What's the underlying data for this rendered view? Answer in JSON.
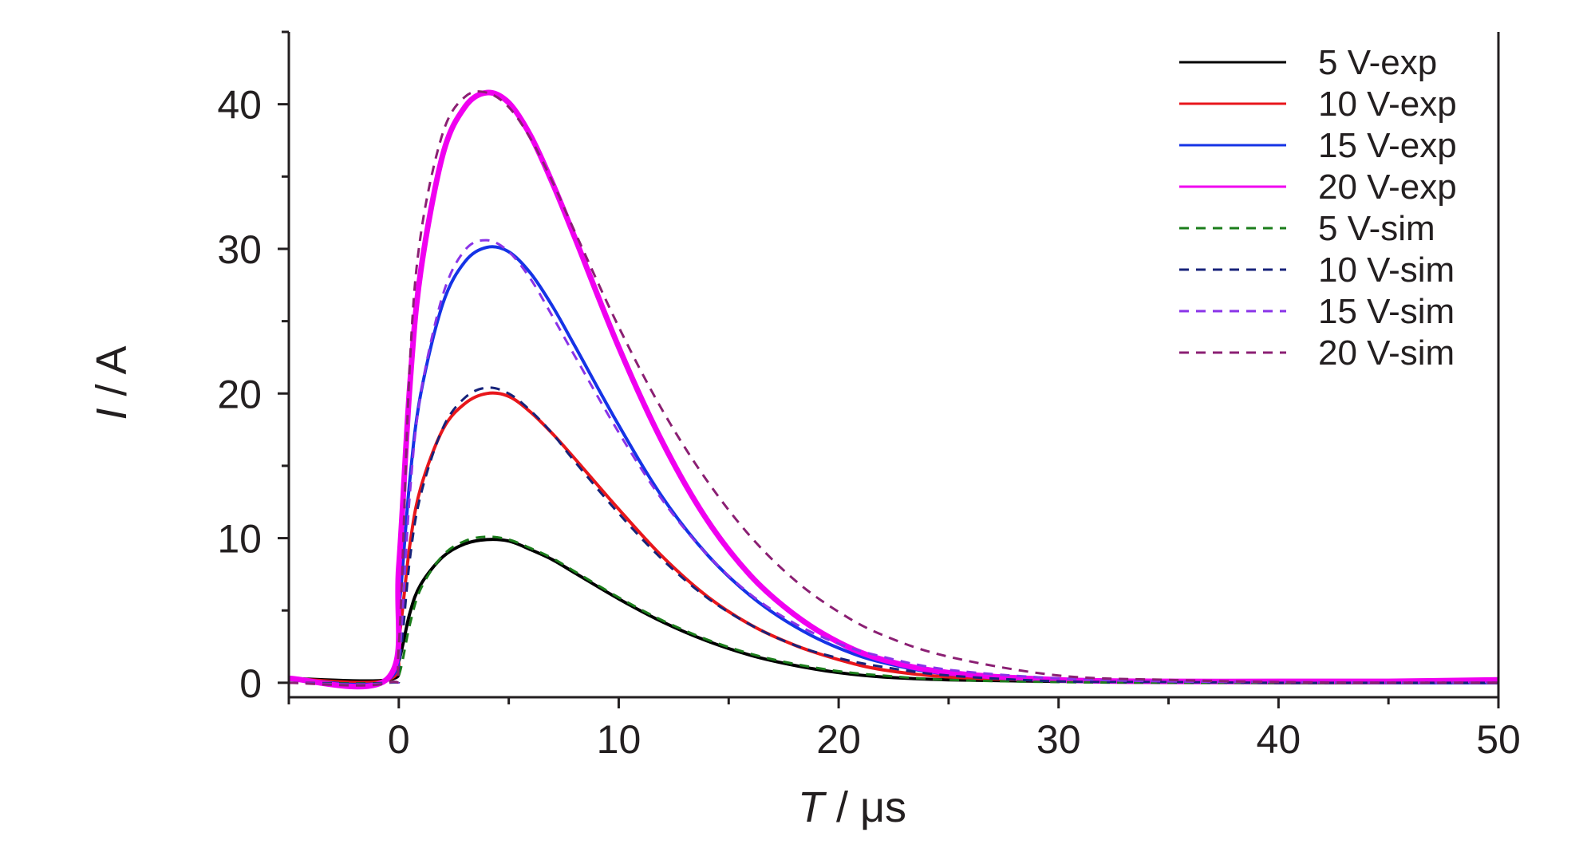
{
  "chart_data": {
    "type": "line",
    "xlabel": {
      "italic": "T",
      "rest": " / μs"
    },
    "ylabel": {
      "italic": "I",
      "rest": " / A"
    },
    "xlim": [
      -5,
      50
    ],
    "ylim": [
      -1,
      45
    ],
    "xticks": [
      0,
      10,
      20,
      30,
      40,
      50
    ],
    "yticks": [
      0,
      10,
      20,
      30,
      40
    ],
    "grid": false,
    "legend_position": "top-right",
    "series": [
      {
        "name": "5 V-exp",
        "amplitude": 10,
        "color": "#000000",
        "dash": "solid",
        "width": 4,
        "x": [
          -5,
          -0.5,
          0,
          0.5,
          1,
          2,
          3,
          4,
          5,
          6,
          7,
          8,
          10,
          12,
          14,
          16,
          18,
          20,
          22,
          25,
          30,
          35,
          40,
          45,
          50
        ],
        "y": [
          0.3,
          0.2,
          1.5,
          4.8,
          6.8,
          8.7,
          9.6,
          9.9,
          9.8,
          9.2,
          8.5,
          7.6,
          5.8,
          4.2,
          2.9,
          1.9,
          1.2,
          0.7,
          0.4,
          0.2,
          0.1,
          0.05,
          0,
          0,
          0
        ]
      },
      {
        "name": "10 V-exp",
        "amplitude": 20,
        "color": "#e8161b",
        "dash": "solid",
        "width": 4,
        "x": [
          -5,
          -0.5,
          0,
          0.5,
          1,
          2,
          3,
          4,
          5,
          6,
          7,
          8,
          10,
          12,
          14,
          16,
          18,
          20,
          22,
          25,
          30,
          35,
          40,
          45,
          50
        ],
        "y": [
          0.3,
          0.2,
          3,
          9.5,
          13.5,
          17.5,
          19.3,
          20,
          19.8,
          18.7,
          17.2,
          15.5,
          12,
          8.7,
          6,
          4,
          2.6,
          1.6,
          0.9,
          0.4,
          0.15,
          0.1,
          0.05,
          0,
          0
        ]
      },
      {
        "name": "15 V-exp",
        "amplitude": 30,
        "color": "#1533e6",
        "dash": "solid",
        "width": 4,
        "x": [
          -5,
          -0.5,
          0,
          0.5,
          1,
          2,
          3,
          4,
          5,
          6,
          7,
          8,
          10,
          12,
          14,
          16,
          18,
          20,
          22,
          25,
          30,
          35,
          40,
          45,
          50
        ],
        "y": [
          0.3,
          0.2,
          5,
          14,
          20,
          26.2,
          29.1,
          30.1,
          29.8,
          28.3,
          26,
          23.3,
          17.8,
          12.8,
          8.9,
          6,
          3.9,
          2.4,
          1.4,
          0.6,
          0.2,
          0.1,
          0.05,
          0,
          0
        ]
      },
      {
        "name": "20 V-exp",
        "amplitude": 40,
        "color": "#f000f0",
        "dash": "solid",
        "width": 7,
        "x": [
          -5,
          -0.5,
          0,
          0.5,
          1,
          2,
          3,
          4,
          5,
          6,
          7,
          8,
          10,
          12,
          14,
          16,
          18,
          20,
          22,
          25,
          30,
          35,
          40,
          45,
          50
        ],
        "y": [
          0.3,
          0.3,
          8,
          20.5,
          28.5,
          36.5,
          39.8,
          40.8,
          40.1,
          37.8,
          34.5,
          30.8,
          23.2,
          16.6,
          11.3,
          7.4,
          4.7,
          2.8,
          1.6,
          0.7,
          0.2,
          0.1,
          0.1,
          0.1,
          0.2
        ]
      },
      {
        "name": "5 V-sim",
        "amplitude": 10,
        "color": "#1b7d1b",
        "dash": "dashed",
        "width": 3,
        "x": [
          -5,
          -0.5,
          0,
          0.5,
          1,
          2,
          3,
          4,
          5,
          6,
          7,
          8,
          10,
          12,
          14,
          16,
          18,
          20,
          22,
          25,
          30,
          35,
          40,
          45,
          50
        ],
        "y": [
          0,
          0,
          0.5,
          4,
          6.5,
          8.8,
          9.8,
          10.1,
          9.9,
          9.3,
          8.6,
          7.7,
          5.9,
          4.3,
          3,
          2,
          1.3,
          0.8,
          0.5,
          0.2,
          0.05,
          0,
          0,
          0,
          0
        ]
      },
      {
        "name": "10 V-sim",
        "amplitude": 20,
        "color": "#17237a",
        "dash": "dashed",
        "width": 3,
        "x": [
          -5,
          -0.5,
          0,
          0.5,
          1,
          2,
          3,
          4,
          5,
          6,
          7,
          8,
          10,
          12,
          14,
          16,
          18,
          20,
          22,
          25,
          30,
          35,
          40,
          45,
          50
        ],
        "y": [
          0,
          0,
          1,
          8.5,
          13,
          17.6,
          19.7,
          20.4,
          20,
          18.8,
          17.2,
          15.3,
          11.7,
          8.5,
          5.9,
          4,
          2.6,
          1.7,
          1.1,
          0.5,
          0.1,
          0.05,
          0,
          0,
          0
        ]
      },
      {
        "name": "15 V-sim",
        "amplitude": 30,
        "color": "#8a33e8",
        "dash": "dashed",
        "width": 3,
        "x": [
          -5,
          -0.5,
          0,
          0.5,
          1,
          2,
          3,
          4,
          5,
          6,
          7,
          8,
          10,
          12,
          14,
          16,
          18,
          20,
          22,
          25,
          30,
          35,
          40,
          45,
          50
        ],
        "y": [
          0,
          0,
          1.5,
          13,
          20,
          26.8,
          29.9,
          30.6,
          29.8,
          27.9,
          25.3,
          22.6,
          17.3,
          12.6,
          8.9,
          6.1,
          4.1,
          2.7,
          1.8,
          0.9,
          0.3,
          0.1,
          0.05,
          0,
          0
        ]
      },
      {
        "name": "20 V-sim",
        "amplitude": 40,
        "color": "#8b1f73",
        "dash": "dashed",
        "width": 3,
        "x": [
          -5,
          -0.5,
          0,
          0.5,
          1,
          2,
          3,
          4,
          5,
          6,
          7,
          8,
          10,
          12,
          14,
          16,
          18,
          20,
          22,
          25,
          30,
          35,
          40,
          45,
          50
        ],
        "y": [
          0,
          0,
          2.5,
          22,
          31,
          38,
          40.5,
          40.8,
          39.8,
          37.6,
          34.6,
          31.2,
          24.6,
          18.8,
          14,
          10.1,
          7.1,
          4.9,
          3.3,
          1.8,
          0.5,
          0.2,
          0.05,
          0,
          0
        ]
      }
    ]
  }
}
